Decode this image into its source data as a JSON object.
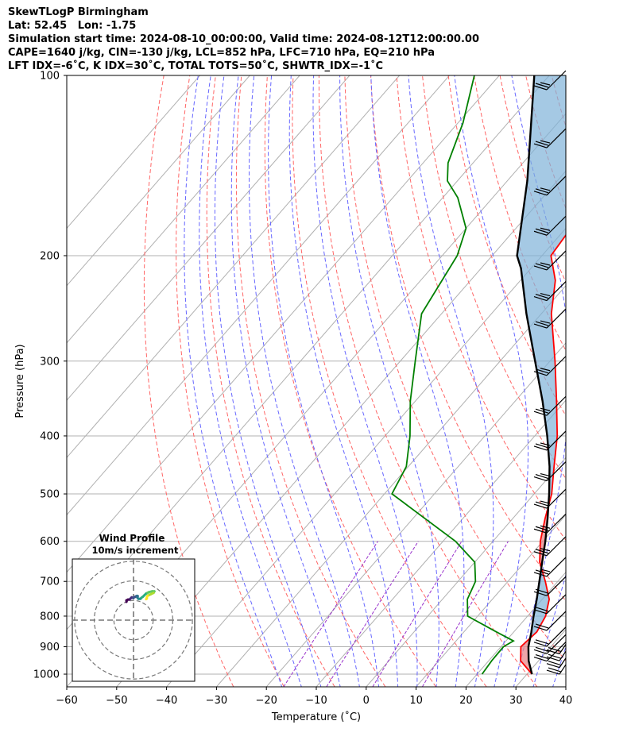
{
  "header": {
    "line1": "SkewTLogP Birmingham",
    "line2": "Lat: 52.45   Lon: -1.75",
    "line3": "Simulation start time: 2024-08-10_00:00:00, Valid time: 2024-08-12T12:00:00.00",
    "line4": "CAPE=1640 j/kg, CIN=-130 j/kg, LCL=852 hPa, LFC=710 hPa, EQ=210 hPa",
    "line5": "LFT IDX=-6˚C, K IDX=30˚C, TOTAL TOTS=50˚C, SHWTR_IDX=-1˚C"
  },
  "chart_data": [
    {
      "type": "line",
      "subtype": "skew-T log-P",
      "xlabel": "Temperature (˚C)",
      "ylabel": "Pressure (hPa)",
      "xlim": [
        -60,
        40
      ],
      "ylim": [
        1050,
        100
      ],
      "y_scale": "log",
      "x_ticks": [
        -60,
        -50,
        -40,
        -30,
        -20,
        -10,
        0,
        10,
        20,
        30,
        40
      ],
      "y_ticks": [
        1000,
        900,
        800,
        700,
        600,
        500,
        400,
        300,
        200,
        100
      ],
      "grid": true,
      "colors": {
        "temperature": "#ff0000",
        "dewpoint": "#008000",
        "parcel": "#000000",
        "cape_fill": "#e8888c",
        "cin_fill": "#7fb2d8",
        "dry_adiabats": "#ff6666",
        "moist_adiabats": "#6666ff",
        "mixing_ratio": "#9933cc",
        "isotherms": "#b0b0b0"
      },
      "series": [
        {
          "name": "",
          "role": "temperature",
          "points": [
            [
              1000,
              31
            ],
            [
              950,
              26.4
            ],
            [
              900,
              24
            ],
            [
              850,
              24.6
            ],
            [
              800,
              23.6
            ],
            [
              750,
              21.4
            ],
            [
              700,
              17.5
            ],
            [
              650,
              13
            ],
            [
              600,
              9.5
            ],
            [
              550,
              6.5
            ],
            [
              500,
              3.5
            ],
            [
              450,
              -0.8
            ],
            [
              400,
              -5.5
            ],
            [
              350,
              -11.7
            ],
            [
              300,
              -19
            ],
            [
              250,
              -28
            ],
            [
              220,
              -33
            ],
            [
              200,
              -38.2
            ],
            [
              180,
              -39
            ],
            [
              160,
              -40
            ],
            [
              140,
              -40
            ],
            [
              120,
              -41
            ],
            [
              100,
              -42
            ]
          ]
        },
        {
          "name": "",
          "role": "dewpoint",
          "points": [
            [
              1000,
              21
            ],
            [
              950,
              20.6
            ],
            [
              900,
              20.5
            ],
            [
              880,
              21.5
            ],
            [
              850,
              16.5
            ],
            [
              800,
              8
            ],
            [
              750,
              5
            ],
            [
              700,
              3.5
            ],
            [
              650,
              0
            ],
            [
              600,
              -7.5
            ],
            [
              550,
              -17.5
            ],
            [
              500,
              -28.5
            ],
            [
              450,
              -30.4
            ],
            [
              400,
              -35
            ],
            [
              350,
              -41
            ],
            [
              300,
              -47
            ],
            [
              250,
              -54
            ],
            [
              200,
              -57
            ],
            [
              180,
              -60
            ],
            [
              160,
              -67
            ],
            [
              150,
              -72
            ],
            [
              140,
              -75
            ],
            [
              120,
              -79
            ],
            [
              100,
              -85
            ]
          ]
        },
        {
          "name": "",
          "role": "parcel",
          "points": [
            [
              1000,
              31
            ],
            [
              950,
              28
            ],
            [
              900,
              25.5
            ],
            [
              852,
              23.6
            ],
            [
              800,
              21.2
            ],
            [
              750,
              18.9
            ],
            [
              700,
              16.3
            ],
            [
              650,
              13.5
            ],
            [
              600,
              10.5
            ],
            [
              550,
              7
            ],
            [
              500,
              3
            ],
            [
              450,
              -1.7
            ],
            [
              400,
              -7.5
            ],
            [
              350,
              -14.5
            ],
            [
              300,
              -23
            ],
            [
              250,
              -33
            ],
            [
              210,
              -42
            ],
            [
              200,
              -45
            ],
            [
              150,
              -56
            ],
            [
              100,
              -73
            ]
          ]
        }
      ],
      "wind_barbs": {
        "pressures": [
          1000,
          975,
          950,
          925,
          900,
          875,
          850,
          800,
          750,
          700,
          650,
          600,
          550,
          500,
          450,
          400,
          350,
          300,
          250,
          225,
          200,
          175,
          150,
          125,
          100
        ],
        "description": "wind barbs along right edge, mostly westerly/west-southwesterly, 10-20 kt"
      }
    },
    {
      "type": "line",
      "subtype": "hodograph",
      "title": "Wind Profile",
      "subtitle": "10m/s increment",
      "rings_ms": [
        10,
        20,
        30
      ],
      "colormap": "viridis",
      "points": [
        [
          -1,
          0
        ],
        [
          -1,
          1
        ],
        [
          0,
          1.5
        ],
        [
          1,
          1.5
        ],
        [
          1.5,
          2
        ],
        [
          2,
          2.5
        ],
        [
          2.5,
          3
        ],
        [
          3,
          2.7
        ],
        [
          3.5,
          2.5
        ],
        [
          4,
          3
        ],
        [
          4.5,
          3.2
        ],
        [
          5,
          3.5
        ],
        [
          6,
          4
        ],
        [
          6.5,
          3.8
        ],
        [
          6.2,
          3
        ],
        [
          6.5,
          2.5
        ],
        [
          7,
          2
        ],
        [
          8,
          2
        ],
        [
          8.5,
          2.2
        ],
        [
          9,
          2.8
        ],
        [
          10,
          3.5
        ],
        [
          11,
          4.5
        ],
        [
          12,
          5.5
        ],
        [
          13,
          6
        ],
        [
          14,
          6.5
        ],
        [
          16,
          7
        ],
        [
          17.5,
          7
        ],
        [
          17,
          6
        ],
        [
          16,
          5.5
        ],
        [
          15,
          5
        ],
        [
          14,
          4.5
        ],
        [
          13,
          4
        ],
        [
          12.5,
          3
        ],
        [
          12.5,
          2.2
        ],
        [
          12,
          1.8
        ]
      ]
    }
  ]
}
